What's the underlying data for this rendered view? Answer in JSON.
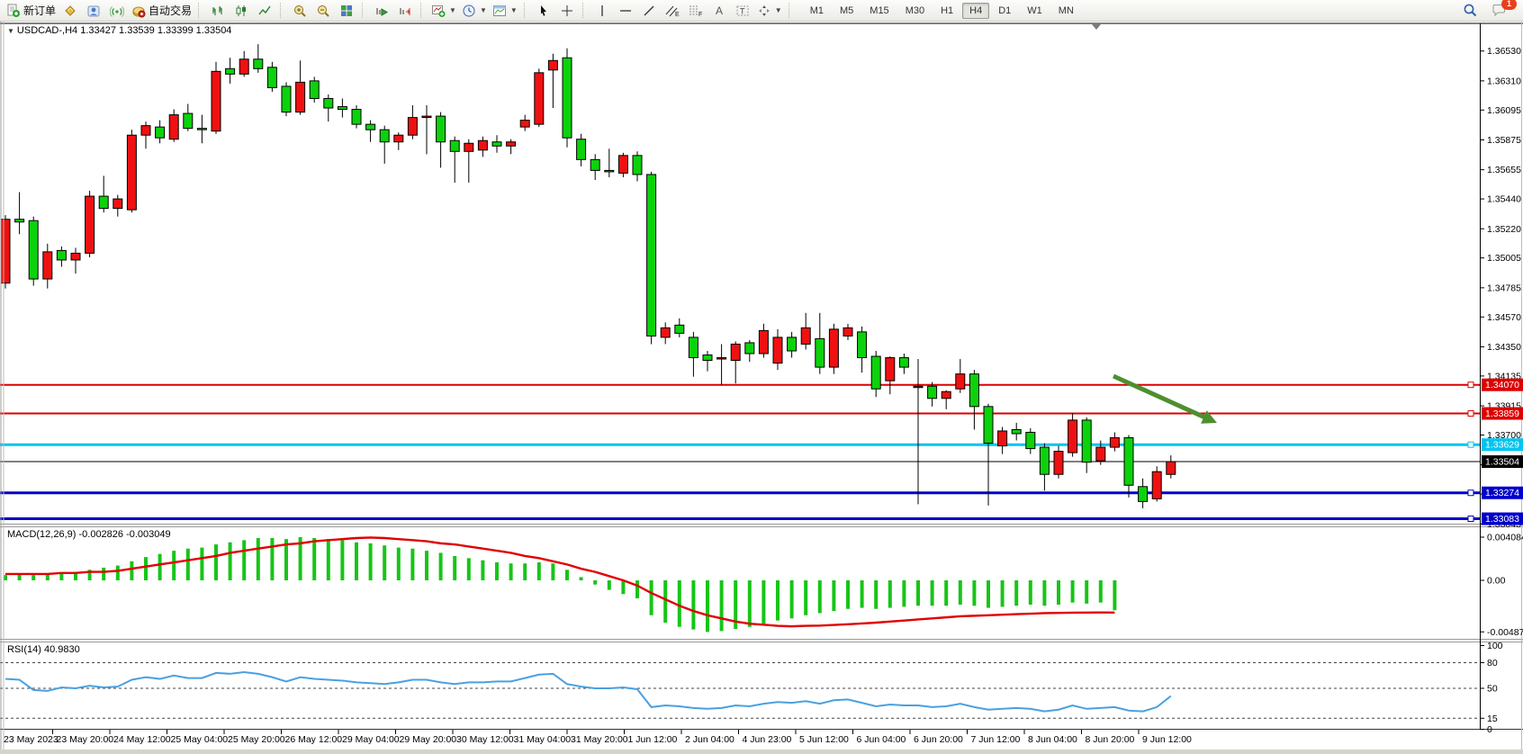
{
  "toolbar": {
    "new_order_label": "新订单",
    "auto_trading_label": "自动交易",
    "timeframes": [
      "M1",
      "M5",
      "M15",
      "M30",
      "H1",
      "H4",
      "D1",
      "W1",
      "MN"
    ],
    "active_timeframe": "H4",
    "notification_count": "1"
  },
  "chart": {
    "title": "USDCAD-,H4  1.33427 1.33539 1.33399 1.33504",
    "symbol": "USDCAD-",
    "period": "H4",
    "ohlc": {
      "open": "1.33427",
      "high": "1.33539",
      "low": "1.33399",
      "close": "1.33504"
    },
    "current_price": "1.33504",
    "current_price_color": "#000000",
    "price_ticks": [
      "1.36530",
      "1.36310",
      "1.36095",
      "1.35875",
      "1.35655",
      "1.35440",
      "1.35220",
      "1.35005",
      "1.34785",
      "1.34570",
      "1.34350",
      "1.34135",
      "1.33915",
      "1.33700",
      "1.33480",
      "1.33265",
      "1.33045"
    ],
    "time_labels": [
      "23 May 2023",
      "23 May 20:00",
      "24 May 12:00",
      "25 May 04:00",
      "25 May 20:00",
      "26 May 12:00",
      "29 May 04:00",
      "29 May 20:00",
      "30 May 12:00",
      "31 May 04:00",
      "31 May 20:00",
      "1 Jun 12:00",
      "2 Jun 04:00",
      "4 Jun 23:00",
      "5 Jun 12:00",
      "6 Jun 04:00",
      "6 Jun 20:00",
      "7 Jun 12:00",
      "8 Jun 04:00",
      "8 Jun 20:00",
      "9 Jun 12:00"
    ],
    "hlines": [
      {
        "price": "1.34070",
        "value": 1.3407,
        "color": "#dd0000",
        "width": 2
      },
      {
        "price": "1.33859",
        "value": 1.33859,
        "color": "#dd0000",
        "width": 2
      },
      {
        "price": "1.33629",
        "value": 1.33629,
        "color": "#00c4f0",
        "width": 3
      },
      {
        "price": "1.33274",
        "value": 1.33274,
        "color": "#0000cc",
        "width": 3
      },
      {
        "price": "1.33083",
        "value": 1.33083,
        "color": "#0000cc",
        "width": 3
      }
    ],
    "arrow": {
      "color": "#4e8f2f",
      "from": [
        1237,
        418
      ],
      "to": [
        1352,
        470
      ]
    }
  },
  "chart_data": {
    "type": "candlestick",
    "title": "USDCAD- H4",
    "bull_color": "#ef1111",
    "bear_color": "#0cd20c",
    "wick_color": "#000000",
    "candles": [
      [
        1.3482,
        1.3532,
        1.3478,
        1.3529
      ],
      [
        1.3529,
        1.3549,
        1.3518,
        1.3527
      ],
      [
        1.3528,
        1.3531,
        1.348,
        1.3485
      ],
      [
        1.3485,
        1.3511,
        1.3478,
        1.3505
      ],
      [
        1.3506,
        1.3509,
        1.3494,
        1.3499
      ],
      [
        1.3499,
        1.3508,
        1.3489,
        1.3504
      ],
      [
        1.3504,
        1.355,
        1.3501,
        1.3546
      ],
      [
        1.3546,
        1.3561,
        1.3534,
        1.3537
      ],
      [
        1.3537,
        1.3547,
        1.3531,
        1.3544
      ],
      [
        1.3536,
        1.3595,
        1.3534,
        1.3591
      ],
      [
        1.3591,
        1.3601,
        1.3581,
        1.3598
      ],
      [
        1.3597,
        1.3602,
        1.3585,
        1.3589
      ],
      [
        1.3588,
        1.361,
        1.3586,
        1.3606
      ],
      [
        1.3607,
        1.3614,
        1.3594,
        1.3596
      ],
      [
        1.3596,
        1.3606,
        1.3585,
        1.35955
      ],
      [
        1.3594,
        1.3645,
        1.3592,
        1.3638
      ],
      [
        1.364,
        1.3648,
        1.3629,
        1.3636
      ],
      [
        1.3636,
        1.3653,
        1.3634,
        1.3647
      ],
      [
        1.3647,
        1.3658,
        1.3637,
        1.364
      ],
      [
        1.3641,
        1.3645,
        1.3623,
        1.3626
      ],
      [
        1.3627,
        1.363,
        1.3605,
        1.3608
      ],
      [
        1.3608,
        1.3646,
        1.3606,
        1.363
      ],
      [
        1.3631,
        1.3634,
        1.3615,
        1.3618
      ],
      [
        1.3618,
        1.3621,
        1.3601,
        1.3611
      ],
      [
        1.3612,
        1.3618,
        1.3604,
        1.361
      ],
      [
        1.361,
        1.3613,
        1.3596,
        1.3599
      ],
      [
        1.3599,
        1.3602,
        1.3586,
        1.3595
      ],
      [
        1.3595,
        1.3598,
        1.357,
        1.3586
      ],
      [
        1.3586,
        1.3593,
        1.358,
        1.3591
      ],
      [
        1.3591,
        1.3613,
        1.3588,
        1.3604
      ],
      [
        1.3605,
        1.3613,
        1.3577,
        1.3605
      ],
      [
        1.3605,
        1.3608,
        1.3567,
        1.3586
      ],
      [
        1.3587,
        1.359,
        1.3556,
        1.3579
      ],
      [
        1.3579,
        1.3588,
        1.3556,
        1.3585
      ],
      [
        1.358,
        1.359,
        1.3575,
        1.3587
      ],
      [
        1.3586,
        1.3591,
        1.3578,
        1.3583
      ],
      [
        1.3583,
        1.3588,
        1.3577,
        1.3586
      ],
      [
        1.3597,
        1.3606,
        1.3594,
        1.3602
      ],
      [
        1.3599,
        1.364,
        1.3597,
        1.3637
      ],
      [
        1.3639,
        1.3651,
        1.3611,
        1.3646
      ],
      [
        1.3648,
        1.3655,
        1.3582,
        1.3589
      ],
      [
        1.3588,
        1.3592,
        1.3568,
        1.3573
      ],
      [
        1.3573,
        1.3577,
        1.3558,
        1.3565
      ],
      [
        1.3565,
        1.3581,
        1.356,
        1.3564
      ],
      [
        1.3563,
        1.3578,
        1.356,
        1.3576
      ],
      [
        1.3576,
        1.3579,
        1.3557,
        1.3562
      ],
      [
        1.3562,
        1.3564,
        1.3437,
        1.3443
      ],
      [
        1.3442,
        1.3453,
        1.3437,
        1.3449
      ],
      [
        1.3451,
        1.3456,
        1.3442,
        1.3445
      ],
      [
        1.3442,
        1.3446,
        1.3413,
        1.3427
      ],
      [
        1.3429,
        1.3432,
        1.3417,
        1.3425
      ],
      [
        1.3426,
        1.3437,
        1.3407,
        1.3427
      ],
      [
        1.3425,
        1.3439,
        1.3408,
        1.3437
      ],
      [
        1.3438,
        1.344,
        1.3424,
        1.343
      ],
      [
        1.343,
        1.3452,
        1.3427,
        1.3447
      ],
      [
        1.3423,
        1.3448,
        1.3418,
        1.3442
      ],
      [
        1.3442,
        1.3446,
        1.3427,
        1.3432
      ],
      [
        1.3437,
        1.346,
        1.3433,
        1.3449
      ],
      [
        1.3441,
        1.346,
        1.3415,
        1.342
      ],
      [
        1.342,
        1.3452,
        1.3415,
        1.3448
      ],
      [
        1.3443,
        1.3452,
        1.344,
        1.3449
      ],
      [
        1.3446,
        1.345,
        1.3416,
        1.3427
      ],
      [
        1.3428,
        1.3432,
        1.3398,
        1.3404
      ],
      [
        1.341,
        1.3428,
        1.34,
        1.3427
      ],
      [
        1.3427,
        1.343,
        1.3415,
        1.342
      ],
      [
        1.3405,
        1.3426,
        1.3319,
        1.3406
      ],
      [
        1.3406,
        1.3409,
        1.3391,
        1.3397
      ],
      [
        1.3397,
        1.3403,
        1.3389,
        1.3402
      ],
      [
        1.3404,
        1.3426,
        1.3401,
        1.3415
      ],
      [
        1.3415,
        1.3418,
        1.3374,
        1.3391
      ],
      [
        1.3391,
        1.3393,
        1.3318,
        1.3364
      ],
      [
        1.3362,
        1.3376,
        1.3356,
        1.3373
      ],
      [
        1.3374,
        1.3379,
        1.3366,
        1.3371
      ],
      [
        1.3372,
        1.3375,
        1.3356,
        1.336
      ],
      [
        1.3361,
        1.3364,
        1.3329,
        1.3341
      ],
      [
        1.3341,
        1.3362,
        1.3338,
        1.3358
      ],
      [
        1.3357,
        1.3386,
        1.3354,
        1.3381
      ],
      [
        1.3381,
        1.3383,
        1.3342,
        1.335
      ],
      [
        1.3351,
        1.3366,
        1.3348,
        1.3361
      ],
      [
        1.3361,
        1.3372,
        1.3358,
        1.3368
      ],
      [
        1.3368,
        1.337,
        1.3324,
        1.3333
      ],
      [
        1.3332,
        1.3338,
        1.3316,
        1.3321
      ],
      [
        1.3323,
        1.3347,
        1.3321,
        1.3343
      ],
      [
        1.3341,
        1.3355,
        1.3338,
        1.33504
      ]
    ],
    "macd": {
      "label": "MACD(12,26,9)",
      "values_label": "-0.002826 -0.003049",
      "macd_value": -0.002826,
      "signal_value": -0.003049,
      "scale_labels": [
        "0.004084",
        "0.00",
        "-0.004872"
      ],
      "histogram_color": "#17c517",
      "signal_color": "#e00000",
      "histogram": [
        0.0005,
        0.0006,
        0.0005,
        0.0006,
        0.0007,
        0.0008,
        0.001,
        0.0012,
        0.0014,
        0.0018,
        0.0022,
        0.0025,
        0.0028,
        0.003,
        0.0031,
        0.0034,
        0.0036,
        0.0038,
        0.004,
        0.004,
        0.0039,
        0.004084,
        0.004,
        0.0039,
        0.0038,
        0.0036,
        0.0035,
        0.0033,
        0.0031,
        0.003,
        0.0028,
        0.0026,
        0.0023,
        0.0021,
        0.0019,
        0.0017,
        0.0016,
        0.0016,
        0.0017,
        0.0016,
        0.001,
        0.0003,
        -0.0004,
        -0.0009,
        -0.0013,
        -0.0017,
        -0.0033,
        -0.004,
        -0.0044,
        -0.00465,
        -0.004872,
        -0.0048,
        -0.0046,
        -0.0044,
        -0.0041,
        -0.0038,
        -0.0036,
        -0.0033,
        -0.0031,
        -0.0029,
        -0.0027,
        -0.0026,
        -0.0027,
        -0.0026,
        -0.0025,
        -0.0024,
        -0.0024,
        -0.0024,
        -0.0023,
        -0.0024,
        -0.0026,
        -0.0025,
        -0.0024,
        -0.0023,
        -0.0024,
        -0.0023,
        -0.0021,
        -0.0022,
        -0.0021,
        -0.002826
      ],
      "signal": [
        0.0006,
        0.0006,
        0.0006,
        0.0006,
        0.0007,
        0.0007,
        0.0008,
        0.0008,
        0.0009,
        0.0011,
        0.0013,
        0.0015,
        0.0017,
        0.0019,
        0.0021,
        0.0023,
        0.0026,
        0.0028,
        0.003,
        0.0032,
        0.0034,
        0.0035,
        0.0037,
        0.0038,
        0.0039,
        0.004,
        0.00405,
        0.004,
        0.0039,
        0.0038,
        0.0037,
        0.0035,
        0.0034,
        0.0032,
        0.003,
        0.0028,
        0.0026,
        0.0023,
        0.0021,
        0.0018,
        0.0015,
        0.0011,
        0.0008,
        0.0004,
        0.0,
        -0.0005,
        -0.0012,
        -0.0018,
        -0.0024,
        -0.0029,
        -0.0033,
        -0.0036,
        -0.0039,
        -0.0041,
        -0.0042,
        -0.0043,
        -0.00435,
        -0.0043,
        -0.00428,
        -0.00422,
        -0.00415,
        -0.00408,
        -0.004,
        -0.0039,
        -0.0038,
        -0.0037,
        -0.0036,
        -0.0035,
        -0.0034,
        -0.00335,
        -0.0033,
        -0.00325,
        -0.0032,
        -0.00315,
        -0.0031,
        -0.00308,
        -0.00306,
        -0.00305,
        -0.00304,
        -0.003049
      ]
    },
    "rsi": {
      "label": "RSI(14)",
      "value": "40.9830",
      "line_color": "#4aa0e0",
      "levels": [
        80,
        50,
        15
      ],
      "scale_labels": [
        "100",
        "80",
        "50",
        "15",
        "0"
      ],
      "points": [
        61,
        60,
        48,
        47,
        51,
        50,
        53,
        51,
        52,
        60,
        63,
        61,
        65,
        62,
        62,
        68,
        67,
        69,
        67,
        63,
        58,
        63,
        61,
        60,
        59,
        57,
        56,
        55,
        57,
        60,
        60,
        57,
        55,
        57,
        57,
        58,
        58,
        62,
        66,
        67,
        55,
        52,
        50,
        50,
        51,
        49,
        28,
        30,
        29,
        27,
        26,
        27,
        30,
        29,
        32,
        34,
        33,
        35,
        32,
        36,
        37,
        33,
        29,
        31,
        30,
        30,
        28,
        29,
        32,
        28,
        25,
        26,
        27,
        26,
        23,
        25,
        30,
        26,
        27,
        28,
        24,
        23,
        28,
        41
      ]
    }
  }
}
